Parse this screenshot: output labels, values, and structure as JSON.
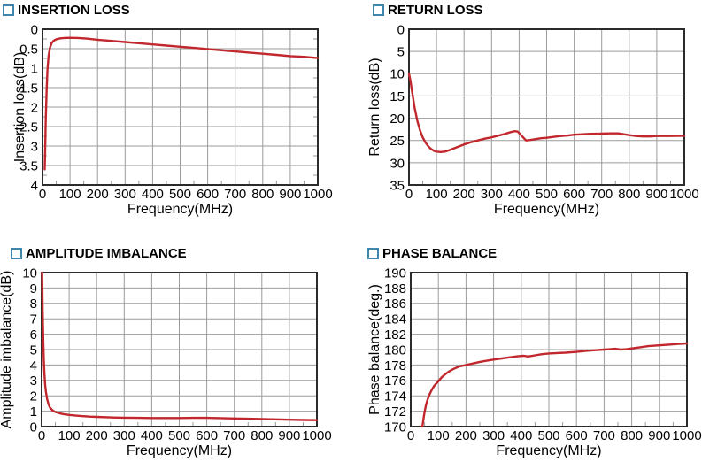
{
  "page": {
    "background": "#ffffff"
  },
  "colors": {
    "curve": "#c1272d",
    "grid": "#9b9b9b",
    "axis_border": "#2b2b2b",
    "text": "#000000",
    "bullet_border": "#3e86ad"
  },
  "chart_data": [
    {
      "id": "insertion-loss",
      "type": "line",
      "title": "INSERTION LOSS",
      "xlabel": "Frequency(MHz)",
      "ylabel": "Insertion loss(dB)",
      "xlim": [
        0,
        1000
      ],
      "ylim": [
        0,
        4
      ],
      "y_axis_reversed": true,
      "grid": true,
      "xticks": [
        0,
        100,
        200,
        300,
        400,
        500,
        600,
        700,
        800,
        900,
        1000
      ],
      "xtick_labels": [
        "0",
        "100",
        "200",
        "300",
        "400",
        "500",
        "600",
        "700",
        "800",
        "900",
        "1000"
      ],
      "yticks": [
        0,
        0.5,
        1,
        1.5,
        2,
        2.5,
        3,
        3.5,
        4
      ],
      "ytick_labels": [
        "0",
        "0.5",
        "1",
        "1.5",
        "2",
        "2.5",
        "3",
        "3.5",
        "4"
      ],
      "x_minor_step": 50,
      "y_minor_step": 0.25,
      "series": [
        {
          "name": "insertion loss",
          "color": "#c1272d",
          "points": [
            [
              8,
              3.6
            ],
            [
              10,
              3.0
            ],
            [
              12,
              2.3
            ],
            [
              15,
              1.55
            ],
            [
              18,
              1.05
            ],
            [
              22,
              0.7
            ],
            [
              27,
              0.48
            ],
            [
              33,
              0.36
            ],
            [
              40,
              0.3
            ],
            [
              50,
              0.26
            ],
            [
              65,
              0.235
            ],
            [
              80,
              0.225
            ],
            [
              100,
              0.22
            ],
            [
              130,
              0.225
            ],
            [
              160,
              0.24
            ],
            [
              200,
              0.27
            ],
            [
              250,
              0.3
            ],
            [
              300,
              0.33
            ],
            [
              350,
              0.36
            ],
            [
              400,
              0.39
            ],
            [
              450,
              0.42
            ],
            [
              500,
              0.45
            ],
            [
              550,
              0.48
            ],
            [
              600,
              0.51
            ],
            [
              650,
              0.54
            ],
            [
              700,
              0.57
            ],
            [
              750,
              0.6
            ],
            [
              800,
              0.63
            ],
            [
              850,
              0.66
            ],
            [
              900,
              0.69
            ],
            [
              950,
              0.71
            ],
            [
              1000,
              0.74
            ]
          ]
        }
      ]
    },
    {
      "id": "return-loss",
      "type": "line",
      "title": "RETURN LOSS",
      "xlabel": "Frequency(MHz)",
      "ylabel": "Return loss(dB)",
      "xlim": [
        0,
        1000
      ],
      "ylim": [
        0,
        35
      ],
      "y_axis_reversed": true,
      "grid": true,
      "xticks": [
        0,
        100,
        200,
        300,
        400,
        500,
        600,
        700,
        800,
        900,
        1000
      ],
      "xtick_labels": [
        "0",
        "100",
        "200",
        "300",
        "400",
        "500",
        "600",
        "700",
        "800",
        "900",
        "1000"
      ],
      "yticks": [
        0,
        5,
        10,
        15,
        20,
        25,
        30,
        35
      ],
      "ytick_labels": [
        "0",
        "5",
        "10",
        "15",
        "20",
        "25",
        "30",
        "35"
      ],
      "x_minor_step": 50,
      "y_minor_step": null,
      "series": [
        {
          "name": "return loss",
          "color": "#c1272d",
          "points": [
            [
              0,
              10
            ],
            [
              5,
              11.5
            ],
            [
              10,
              13.5
            ],
            [
              15,
              15.5
            ],
            [
              20,
              17.5
            ],
            [
              25,
              19
            ],
            [
              30,
              20.5
            ],
            [
              40,
              22.7
            ],
            [
              50,
              24.3
            ],
            [
              60,
              25.5
            ],
            [
              70,
              26.3
            ],
            [
              80,
              26.9
            ],
            [
              90,
              27.3
            ],
            [
              100,
              27.5
            ],
            [
              115,
              27.6
            ],
            [
              130,
              27.5
            ],
            [
              150,
              27.1
            ],
            [
              175,
              26.5
            ],
            [
              200,
              25.9
            ],
            [
              225,
              25.4
            ],
            [
              250,
              25.0
            ],
            [
              275,
              24.6
            ],
            [
              300,
              24.3
            ],
            [
              325,
              23.9
            ],
            [
              350,
              23.5
            ],
            [
              370,
              23.1
            ],
            [
              385,
              22.9
            ],
            [
              395,
              23.0
            ],
            [
              410,
              24.0
            ],
            [
              425,
              25.0
            ],
            [
              440,
              24.9
            ],
            [
              460,
              24.7
            ],
            [
              480,
              24.5
            ],
            [
              500,
              24.4
            ],
            [
              525,
              24.2
            ],
            [
              550,
              24.0
            ],
            [
              575,
              23.9
            ],
            [
              600,
              23.7
            ],
            [
              630,
              23.6
            ],
            [
              660,
              23.5
            ],
            [
              700,
              23.45
            ],
            [
              730,
              23.4
            ],
            [
              760,
              23.4
            ],
            [
              780,
              23.6
            ],
            [
              800,
              23.8
            ],
            [
              825,
              24.0
            ],
            [
              850,
              24.1
            ],
            [
              875,
              24.1
            ],
            [
              900,
              24.0
            ],
            [
              950,
              24.0
            ],
            [
              1000,
              23.95
            ]
          ]
        }
      ]
    },
    {
      "id": "amplitude-imbalance",
      "type": "line",
      "title": "AMPLITUDE IMBALANCE",
      "xlabel": "Frequency(MHz)",
      "ylabel": "Amplitude imbalance(dB)",
      "xlim": [
        0,
        1000
      ],
      "ylim": [
        0,
        10
      ],
      "y_axis_reversed": false,
      "grid": true,
      "xticks": [
        0,
        100,
        200,
        300,
        400,
        500,
        600,
        700,
        800,
        900,
        1000
      ],
      "xtick_labels": [
        "0",
        "100",
        "200",
        "300",
        "400",
        "500",
        "600",
        "700",
        "800",
        "900",
        "1000"
      ],
      "yticks": [
        0,
        1,
        2,
        3,
        4,
        5,
        6,
        7,
        8,
        9,
        10
      ],
      "ytick_labels": [
        "0",
        "1",
        "2",
        "3",
        "4",
        "5",
        "6",
        "7",
        "8",
        "9",
        "10"
      ],
      "x_minor_step": 50,
      "y_minor_step": null,
      "series": [
        {
          "name": "amplitude imbalance",
          "color": "#c1272d",
          "points": [
            [
              2,
              10
            ],
            [
              4,
              7.5
            ],
            [
              6,
              5.5
            ],
            [
              8,
              4.3
            ],
            [
              10,
              3.5
            ],
            [
              13,
              2.7
            ],
            [
              16,
              2.2
            ],
            [
              20,
              1.8
            ],
            [
              25,
              1.45
            ],
            [
              30,
              1.25
            ],
            [
              40,
              1.05
            ],
            [
              50,
              0.95
            ],
            [
              65,
              0.87
            ],
            [
              80,
              0.81
            ],
            [
              100,
              0.76
            ],
            [
              125,
              0.71
            ],
            [
              150,
              0.68
            ],
            [
              175,
              0.65
            ],
            [
              200,
              0.63
            ],
            [
              250,
              0.6
            ],
            [
              300,
              0.58
            ],
            [
              350,
              0.57
            ],
            [
              400,
              0.56
            ],
            [
              450,
              0.56
            ],
            [
              500,
              0.56
            ],
            [
              550,
              0.57
            ],
            [
              600,
              0.57
            ],
            [
              650,
              0.55
            ],
            [
              700,
              0.53
            ],
            [
              750,
              0.51
            ],
            [
              800,
              0.49
            ],
            [
              850,
              0.47
            ],
            [
              900,
              0.45
            ],
            [
              950,
              0.43
            ],
            [
              1000,
              0.42
            ]
          ]
        }
      ]
    },
    {
      "id": "phase-balance",
      "type": "line",
      "title": "PHASE BALANCE",
      "xlabel": "Frequency(MHz)",
      "ylabel": "Phase balance(deg.)",
      "xlim": [
        0,
        1000
      ],
      "ylim": [
        170,
        190
      ],
      "y_axis_reversed": false,
      "grid": true,
      "xticks": [
        0,
        100,
        200,
        300,
        400,
        500,
        600,
        700,
        800,
        900,
        1000
      ],
      "xtick_labels": [
        "0",
        "100",
        "200",
        "300",
        "400",
        "500",
        "600",
        "700",
        "800",
        "900",
        "1000"
      ],
      "yticks": [
        170,
        172,
        174,
        176,
        178,
        180,
        182,
        184,
        186,
        188,
        190
      ],
      "ytick_labels": [
        "170",
        "172",
        "174",
        "176",
        "178",
        "180",
        "182",
        "184",
        "186",
        "188",
        "190"
      ],
      "x_minor_step": 50,
      "y_minor_step": null,
      "series": [
        {
          "name": "phase balance",
          "color": "#c1272d",
          "points": [
            [
              42,
              170
            ],
            [
              46,
              171
            ],
            [
              50,
              171.9
            ],
            [
              55,
              172.8
            ],
            [
              60,
              173.4
            ],
            [
              67,
              174.1
            ],
            [
              75,
              174.7
            ],
            [
              85,
              175.3
            ],
            [
              100,
              175.9
            ],
            [
              112,
              176.4
            ],
            [
              125,
              176.8
            ],
            [
              140,
              177.2
            ],
            [
              155,
              177.5
            ],
            [
              175,
              177.8
            ],
            [
              200,
              178.0
            ],
            [
              225,
              178.2
            ],
            [
              250,
              178.4
            ],
            [
              275,
              178.55
            ],
            [
              300,
              178.7
            ],
            [
              330,
              178.85
            ],
            [
              360,
              179.0
            ],
            [
              390,
              179.15
            ],
            [
              410,
              179.2
            ],
            [
              425,
              179.1
            ],
            [
              450,
              179.25
            ],
            [
              475,
              179.4
            ],
            [
              500,
              179.5
            ],
            [
              530,
              179.55
            ],
            [
              560,
              179.6
            ],
            [
              600,
              179.7
            ],
            [
              640,
              179.85
            ],
            [
              680,
              179.95
            ],
            [
              700,
              180.0
            ],
            [
              720,
              180.05
            ],
            [
              740,
              180.1
            ],
            [
              760,
              180.0
            ],
            [
              780,
              180.05
            ],
            [
              800,
              180.15
            ],
            [
              830,
              180.3
            ],
            [
              860,
              180.45
            ],
            [
              900,
              180.55
            ],
            [
              940,
              180.65
            ],
            [
              970,
              180.75
            ],
            [
              1000,
              180.8
            ]
          ]
        }
      ]
    }
  ]
}
